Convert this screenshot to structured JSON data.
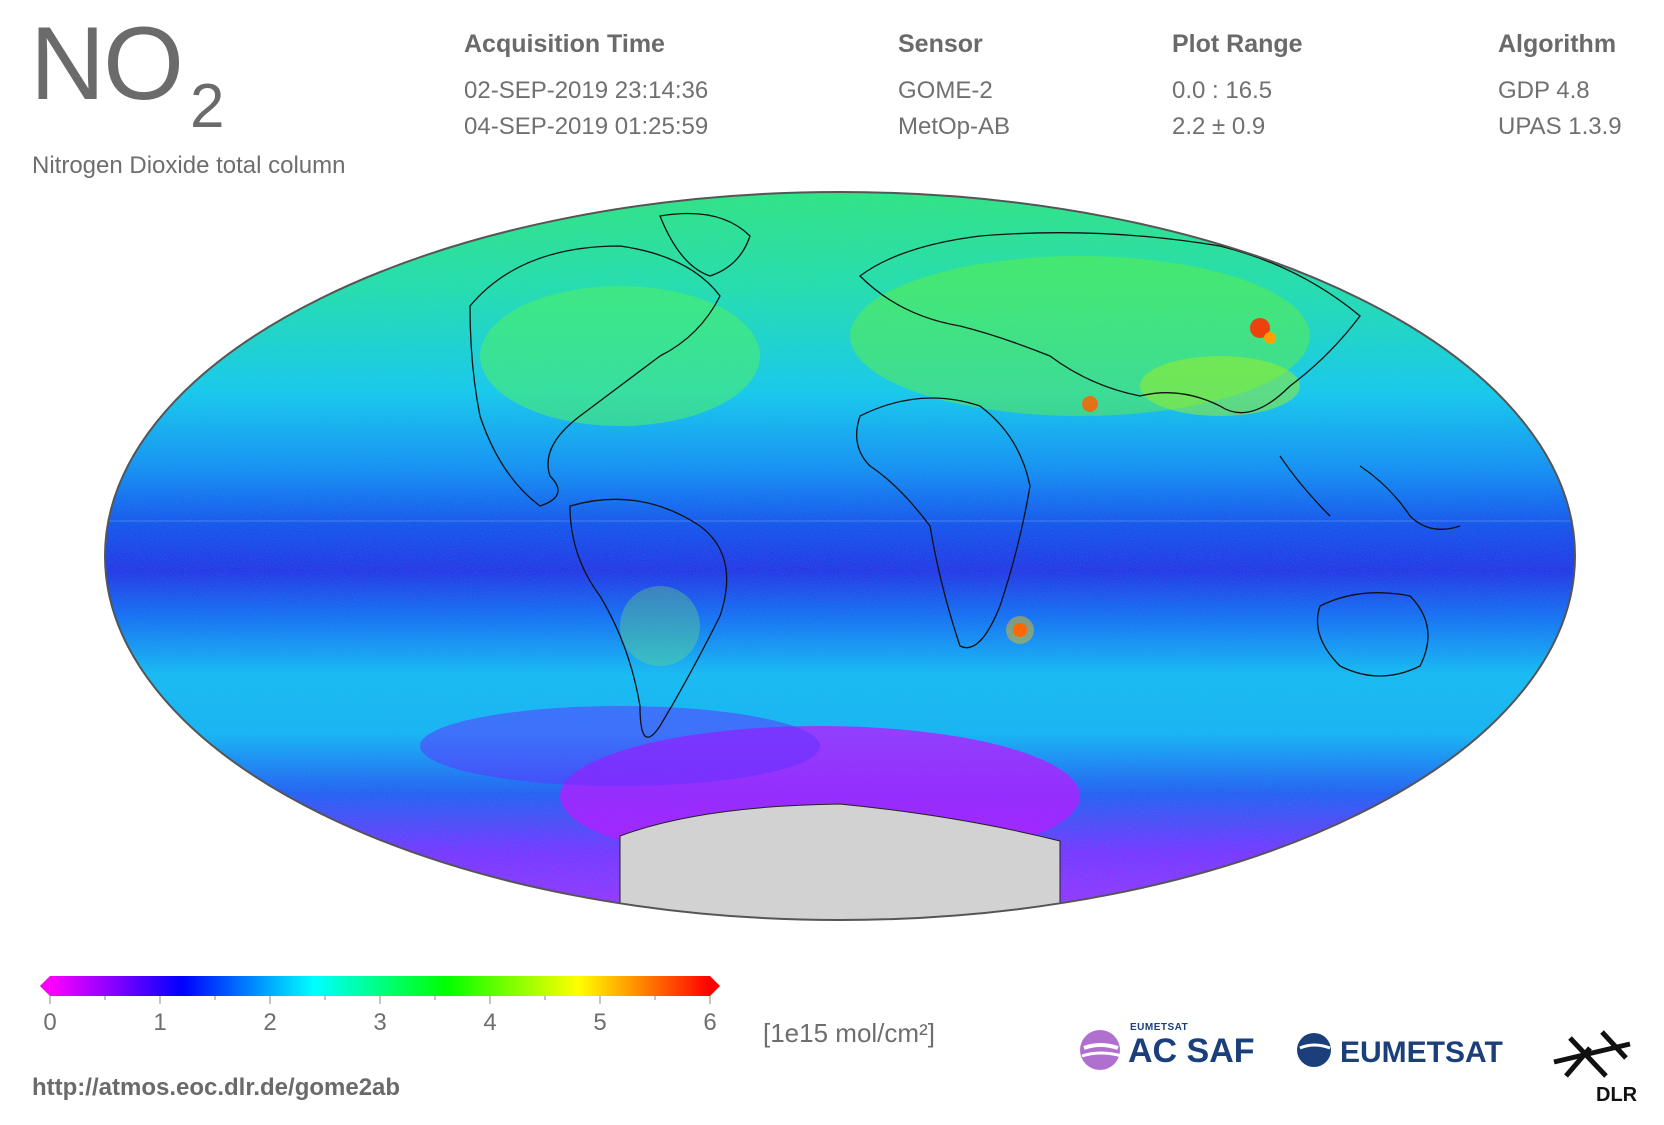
{
  "title": {
    "main": "NO",
    "subscript": "2",
    "subtitle": "Nitrogen Dioxide total column"
  },
  "metadata": {
    "acquisition": {
      "label": "Acquisition Time",
      "start": "02-SEP-2019 23:14:36",
      "end": "04-SEP-2019 01:25:59"
    },
    "sensor": {
      "label": "Sensor",
      "instrument": "GOME-2",
      "platform": "MetOp-AB"
    },
    "plot_range": {
      "label": "Plot Range",
      "range": "0.0 : 16.5",
      "mean": "2.2 ± 0.9"
    },
    "algorithm": {
      "label": "Algorithm",
      "retrieval": "GDP 4.8",
      "processor": "UPAS 1.3.9"
    }
  },
  "colorbar": {
    "ticks": [
      "0",
      "1",
      "2",
      "3",
      "4",
      "5",
      "6"
    ],
    "unit": "[1e15 mol/cm²]",
    "colors": [
      "#ff00ff",
      "#8000ff",
      "#0000ff",
      "#0080ff",
      "#00ffff",
      "#00ff80",
      "#00ff00",
      "#80ff00",
      "#ffff00",
      "#ff8000",
      "#ff0000"
    ]
  },
  "footer": {
    "url": "http://atmos.eoc.dlr.de/gome2ab"
  },
  "logos": {
    "acsaf": {
      "top": "EUMETSAT",
      "main": "AC SAF"
    },
    "eumetsat": {
      "main": "EUMETSAT"
    },
    "dlr": {
      "main": "DLR"
    }
  },
  "map": {
    "projection": "mollweide",
    "colors": {
      "polar_north": "#40e860",
      "mid": "#20c8f0",
      "tropics": "#1838e8",
      "southern_low": "#a020ff",
      "antarctica": "#d2d2d2",
      "hotspot": "#ff3000",
      "outline": "#555555"
    }
  }
}
